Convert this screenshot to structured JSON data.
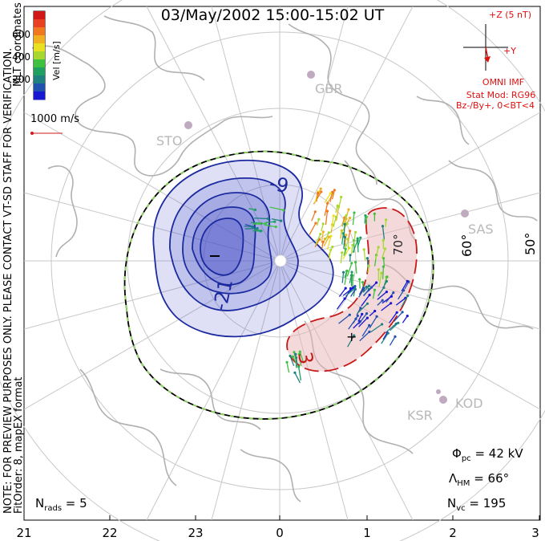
{
  "title": "03/May/2002 15:00-15:02 UT",
  "colorbar": {
    "label": "Vel [m/s]",
    "ticks": [
      "600",
      "400",
      "200"
    ],
    "colors": [
      "#d01818",
      "#e84020",
      "#f07820",
      "#f0b020",
      "#e8e020",
      "#a8d830",
      "#40c040",
      "#20a060",
      "#208080",
      "#2050b0",
      "#1818d0"
    ]
  },
  "coord_label": "MLT coordinates",
  "scale_label": "1000 m/s",
  "imf": {
    "axis_z": "+Z (5 nT)",
    "axis_y": "+Y",
    "source": "OMNI IMF",
    "model": "Stat Mod: RG96",
    "condition": "Bz-/By+, 0<BT<4"
  },
  "stations": [
    "GBR",
    "STO",
    "SAS",
    "KOD",
    "KSR"
  ],
  "lat_labels": [
    "60°",
    "50°",
    "70°"
  ],
  "contour_labels": [
    "-9",
    "-21",
    "3",
    "+"
  ],
  "note_line1": "NOTE: FOR PREVIEW PURPOSES ONLY. PLEASE CONTACT VT-SD STAFF FOR VERIFICATION.",
  "note_line2": "FitOrder: 8, mapEX format",
  "stats": {
    "phi_sym": "Φ",
    "phi_sub": "pc",
    "phi_val": " = 42 kV",
    "lam_sym": "Λ",
    "lam_sub": "HM",
    "lam_val": " = 66°",
    "nvc_sym": "N",
    "nvc_sub": "vc",
    "nvc_val": " = 195",
    "nrads_sym": "N",
    "nrads_sub": "rads",
    "nrads_val": " = 5"
  },
  "mlt_labels": [
    "21",
    "22",
    "23",
    "0",
    "1",
    "2",
    "3"
  ],
  "colors": {
    "neg_fill": "#4b54c8",
    "pos_fill": "#e8b4b4",
    "neg_contour": "#1c2aa0",
    "pos_contour": "#c81818",
    "grid": "#c8c8c8",
    "coast": "#b0b0b0",
    "imf_red": "#e01010"
  }
}
